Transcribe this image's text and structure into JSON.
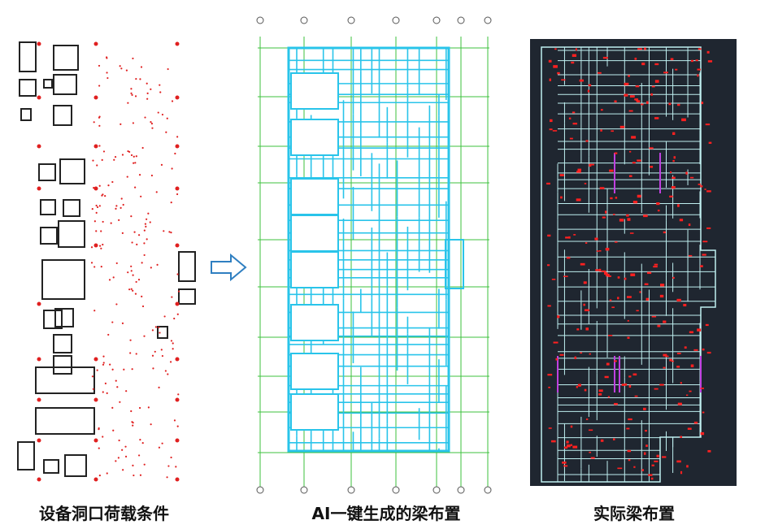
{
  "captions": {
    "left": "设备洞口荷载条件",
    "middle": "AI一键生成的梁布置",
    "right": "实际梁布置"
  },
  "colors": {
    "openings": "#222222",
    "load_points": "#e02020",
    "ai_beams": "#29c4ea",
    "axis_grid": "#3ec23e",
    "actual_bg": "#1f2630",
    "actual_beams": "#bfeff0",
    "actual_annotations": "#ff2020",
    "arrow": "#2f7fc1"
  },
  "icons": {
    "arrow": "right-arrow-icon"
  }
}
